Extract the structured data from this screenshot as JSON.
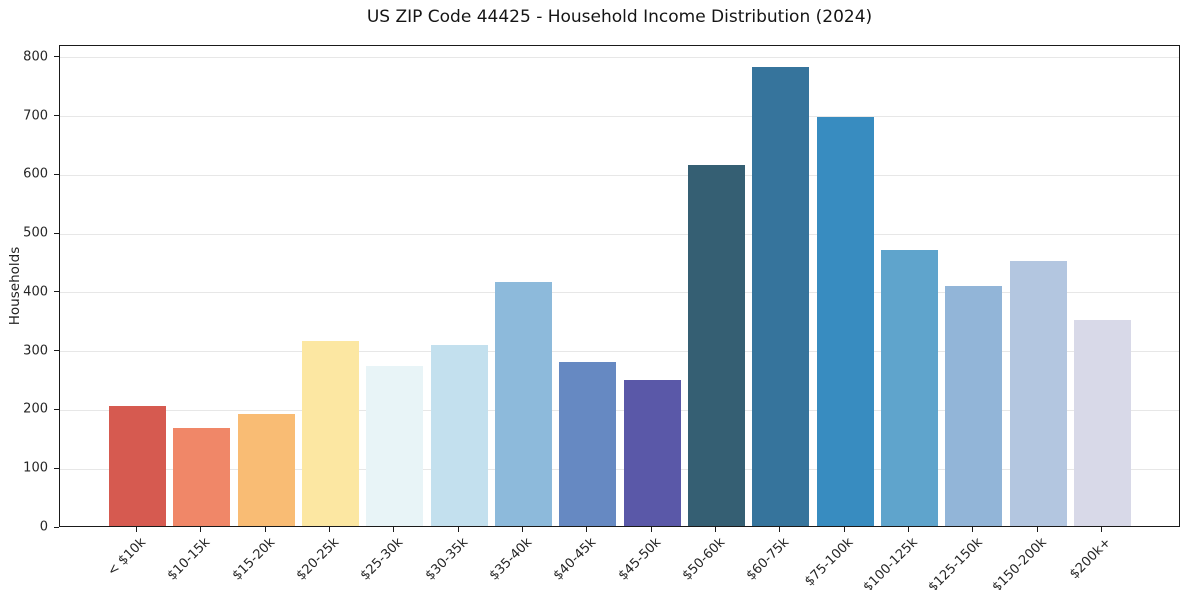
{
  "chart_data": {
    "type": "bar",
    "title": "US ZIP Code 44425 - Household Income Distribution (2024)",
    "xlabel": "",
    "ylabel": "Households",
    "categories": [
      "< $10k",
      "$10-15k",
      "$15-20k",
      "$20-25k",
      "$25-30k",
      "$30-35k",
      "$35-40k",
      "$40-45k",
      "$45-50k",
      "$50-60k",
      "$60-75k",
      "$75-100k",
      "$100-125k",
      "$125-150k",
      "$150-200k",
      "$200k+"
    ],
    "values": [
      205,
      166,
      190,
      315,
      272,
      308,
      415,
      279,
      249,
      615,
      781,
      696,
      470,
      409,
      451,
      351
    ],
    "bar_colors": [
      "#d65a50",
      "#f08768",
      "#f9bc74",
      "#fce7a2",
      "#e8f4f7",
      "#c3e0ee",
      "#8dbadb",
      "#6689c2",
      "#5a58a8",
      "#355f73",
      "#36749c",
      "#388cc0",
      "#5fa4cc",
      "#92b5d8",
      "#b3c6e0",
      "#d8d9e8"
    ],
    "ylim": [
      0,
      820
    ],
    "yticks": [
      0,
      100,
      200,
      300,
      400,
      500,
      600,
      700,
      800
    ],
    "grid": "horizontal",
    "gridline_color": "#e7e7e7",
    "legend": "none",
    "background_color": "#ffffff"
  }
}
